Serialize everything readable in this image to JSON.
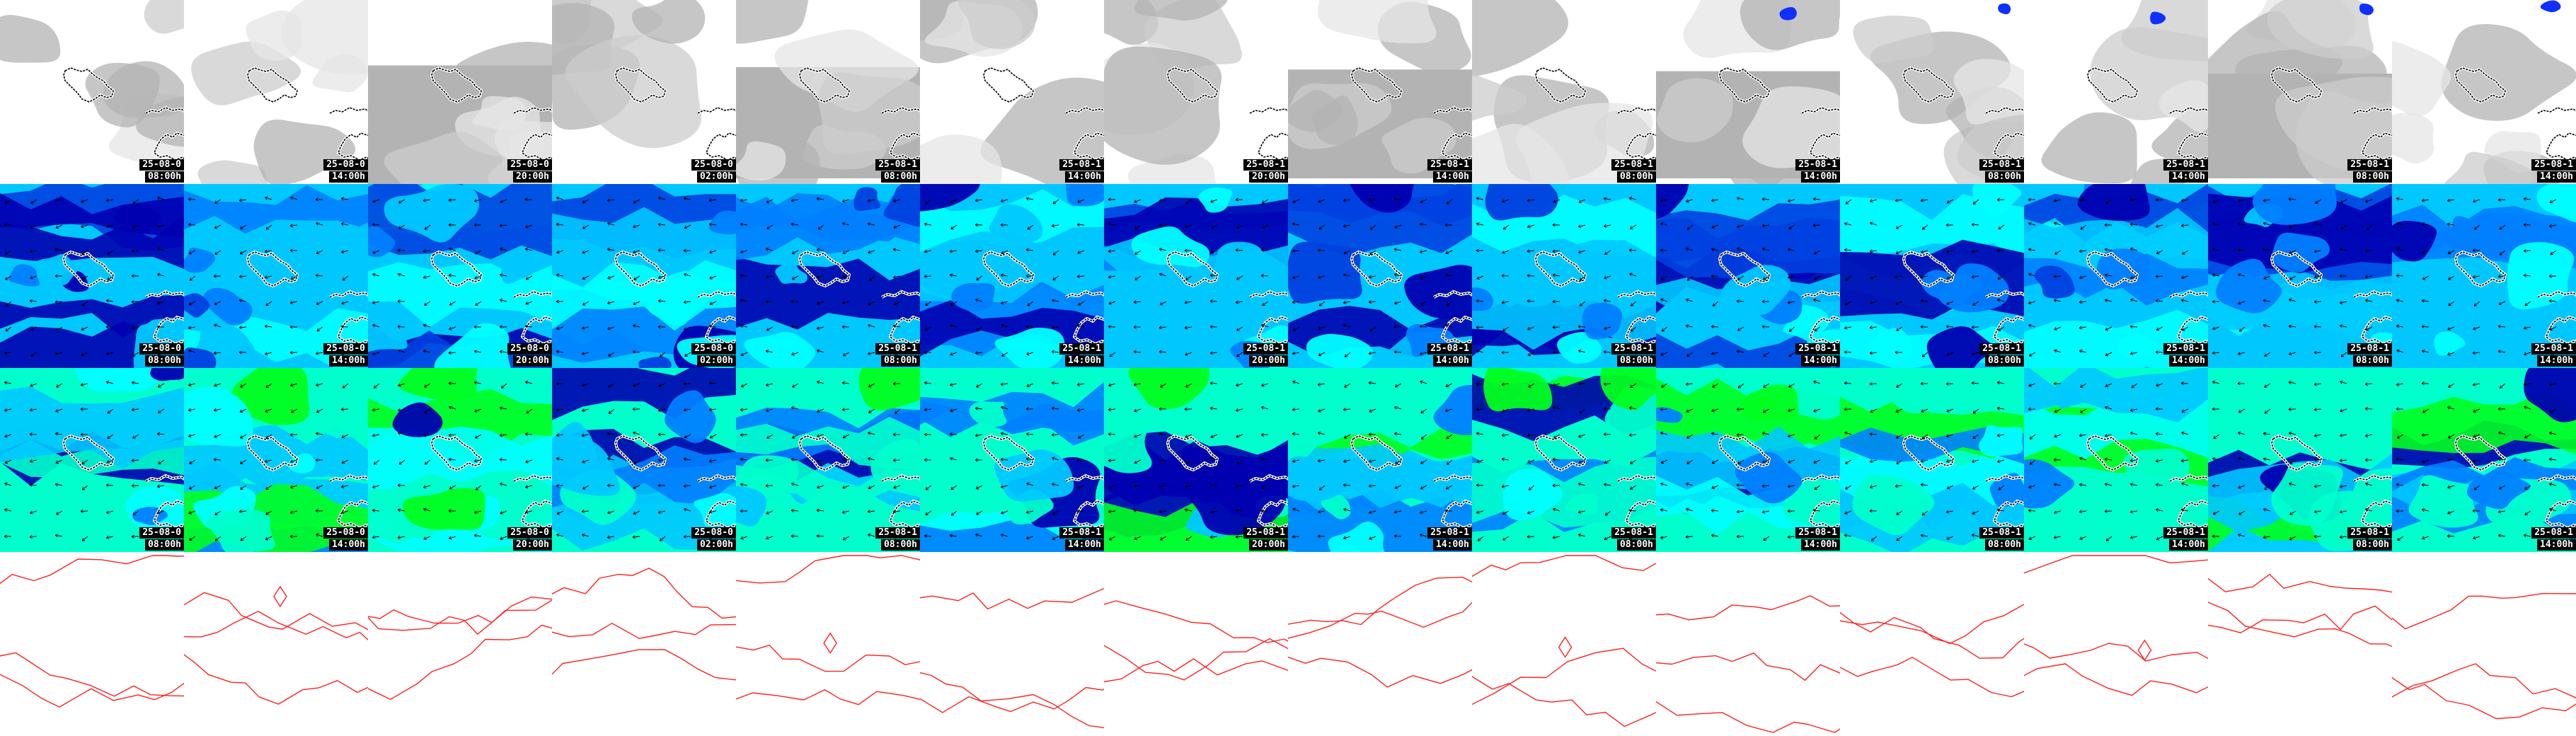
{
  "columns": [
    {
      "date": "25-08-0",
      "time": "08:00h"
    },
    {
      "date": "25-08-0",
      "time": "14:00h"
    },
    {
      "date": "25-08-0",
      "time": "20:00h"
    },
    {
      "date": "25-08-0",
      "time": "02:00h"
    },
    {
      "date": "25-08-1",
      "time": "08:00h"
    },
    {
      "date": "25-08-1",
      "time": "14:00h"
    },
    {
      "date": "25-08-1",
      "time": "20:00h"
    },
    {
      "date": "25-08-1",
      "time": "14:00h"
    },
    {
      "date": "25-08-1",
      "time": "08:00h"
    },
    {
      "date": "25-08-1",
      "time": "14:00h"
    },
    {
      "date": "25-08-1",
      "time": "08:00h"
    },
    {
      "date": "25-08-1",
      "time": "14:00h"
    },
    {
      "date": "25-08-1",
      "time": "08:00h"
    },
    {
      "date": "25-08-1",
      "time": "14:00h"
    }
  ],
  "rows": [
    {
      "id": "clouds",
      "palette": [
        "#ffffff",
        "#e6e6e6",
        "#cccccc",
        "#b3b3b3"
      ]
    },
    {
      "id": "wind-low",
      "palette": [
        "#00ffff",
        "#00c8ff",
        "#0080ff",
        "#0040e0",
        "#0000b0"
      ]
    },
    {
      "id": "wind-high",
      "palette": [
        "#00ff20",
        "#00ffcc",
        "#00ffff",
        "#00c8ff",
        "#0080ff",
        "#0000b0"
      ]
    },
    {
      "id": "isolines",
      "palette": [
        "#ff0000"
      ]
    }
  ],
  "colors": {
    "coastline": "#000000",
    "coastline_halo": "#ffffff",
    "isoline": "#ff2020",
    "arrow": "#000000"
  }
}
